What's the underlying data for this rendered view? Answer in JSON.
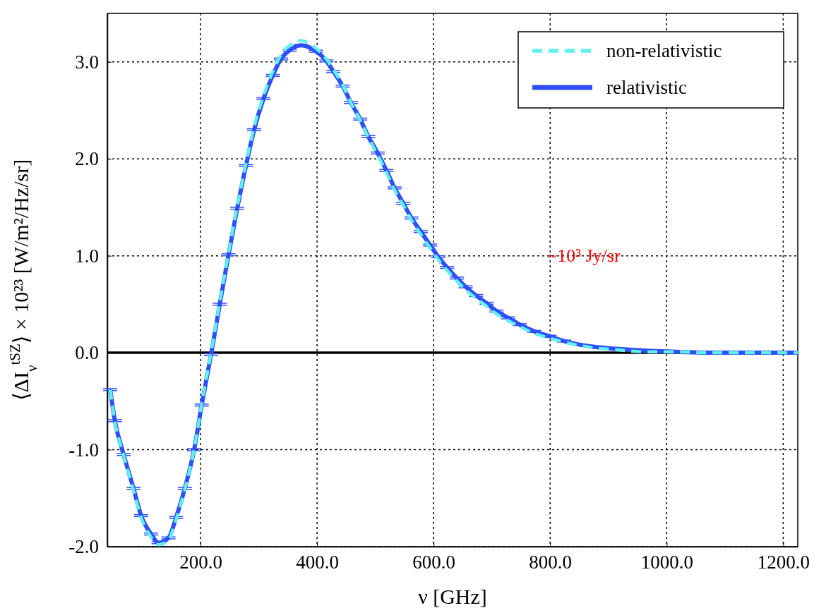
{
  "chart_data": {
    "type": "line",
    "xlabel": "ν [GHz]",
    "ylabel": "⟨ΔI$_{ν}$$^{tSZ}$⟩ × 10²³ [W/m²/Hz/sr]",
    "xlim": [
      40,
      1225
    ],
    "ylim": [
      -2.0,
      3.5
    ],
    "xticks": [
      {
        "value": 200,
        "label": "200.0"
      },
      {
        "value": 400,
        "label": "400.0"
      },
      {
        "value": 600,
        "label": "600.0"
      },
      {
        "value": 800,
        "label": "800.0"
      },
      {
        "value": 1000,
        "label": "1000.0"
      },
      {
        "value": 1200,
        "label": "1200.0"
      }
    ],
    "yticks": [
      {
        "value": -2,
        "label": "-2.0"
      },
      {
        "value": -1,
        "label": "-1.0"
      },
      {
        "value": 0,
        "label": "0.0"
      },
      {
        "value": 1,
        "label": "1.0"
      },
      {
        "value": 2,
        "label": "2.0"
      },
      {
        "value": 3,
        "label": "3.0"
      }
    ],
    "grid": true,
    "legend": "top right",
    "marker": "none",
    "ref_lines": [
      {
        "axis": "y",
        "value": 0,
        "color": "#000000"
      }
    ],
    "annotations": [
      "~10³ Jy/sr"
    ],
    "series": [
      {
        "name": "non-relativistic",
        "color": "#5ff0f0",
        "line_style": "dashed",
        "x": [
          45,
          53,
          68,
          85,
          98,
          115,
          128,
          145,
          158,
          173,
          189,
          202,
          218,
          233,
          248,
          263,
          278,
          292,
          308,
          324,
          338,
          353,
          372,
          398,
          416,
          428,
          444,
          458,
          474,
          488,
          504,
          519,
          533,
          548,
          562,
          578,
          594,
          608,
          623,
          640,
          655,
          673,
          691,
          708,
          728,
          748,
          773,
          799,
          824,
          864,
          915,
          966,
          1016,
          1068,
          1120,
          1170,
          1225
        ],
        "values": [
          -0.38,
          -0.71,
          -1.06,
          -1.42,
          -1.7,
          -1.9,
          -1.98,
          -1.93,
          -1.72,
          -1.41,
          -1.0,
          -0.53,
          0.0,
          0.52,
          1.03,
          1.51,
          1.95,
          2.33,
          2.65,
          2.9,
          3.07,
          3.17,
          3.22,
          3.14,
          3.03,
          2.92,
          2.76,
          2.58,
          2.4,
          2.22,
          2.04,
          1.86,
          1.68,
          1.52,
          1.37,
          1.22,
          1.08,
          0.96,
          0.85,
          0.74,
          0.65,
          0.56,
          0.48,
          0.4,
          0.33,
          0.27,
          0.2,
          0.15,
          0.11,
          0.06,
          0.03,
          0.01,
          0.01,
          0.0,
          0.0,
          0.0,
          0.0
        ]
      },
      {
        "name": "relativistic",
        "color": "#2f4ff7",
        "line_style": "solid",
        "x": [
          45,
          53,
          68,
          85,
          98,
          115,
          128,
          145,
          158,
          173,
          189,
          202,
          218,
          233,
          248,
          263,
          278,
          292,
          308,
          324,
          338,
          353,
          372,
          398,
          416,
          428,
          444,
          458,
          474,
          488,
          504,
          519,
          533,
          548,
          562,
          578,
          594,
          608,
          623,
          640,
          655,
          673,
          691,
          708,
          728,
          748,
          773,
          799,
          824,
          864,
          915,
          966,
          1016,
          1068,
          1120,
          1170,
          1225
        ],
        "values": [
          -0.38,
          -0.7,
          -1.05,
          -1.4,
          -1.68,
          -1.87,
          -1.96,
          -1.91,
          -1.7,
          -1.4,
          -1.0,
          -0.54,
          -0.02,
          0.5,
          1.01,
          1.49,
          1.93,
          2.3,
          2.62,
          2.86,
          3.03,
          3.12,
          3.17,
          3.11,
          3.01,
          2.9,
          2.75,
          2.58,
          2.41,
          2.23,
          2.06,
          1.88,
          1.7,
          1.54,
          1.39,
          1.25,
          1.11,
          0.99,
          0.88,
          0.77,
          0.68,
          0.59,
          0.51,
          0.43,
          0.36,
          0.29,
          0.22,
          0.17,
          0.12,
          0.07,
          0.04,
          0.02,
          0.01,
          0.0,
          0.0,
          0.0,
          0.0
        ],
        "errors": [
          0.01,
          0.01,
          0.01,
          0.01,
          0.01,
          0.01,
          0.01,
          0.01,
          0.01,
          0.01,
          0.01,
          0.01,
          0.01,
          0.01,
          0.01,
          0.01,
          0.01,
          0.01,
          0.01,
          0.01,
          0.01,
          0.01,
          0.01,
          0.01,
          0.01,
          0.01,
          0.01,
          0.01,
          0.01,
          0.01,
          0.01,
          0.01,
          0.01,
          0.01,
          0.01,
          0.01,
          0.01,
          0.01,
          0.01,
          0.01,
          0.01,
          0.01,
          0.01,
          0.01,
          0.01,
          0.01,
          0.01,
          0.01,
          0.01,
          null,
          null,
          null,
          null,
          null,
          null,
          null,
          null
        ]
      }
    ]
  }
}
